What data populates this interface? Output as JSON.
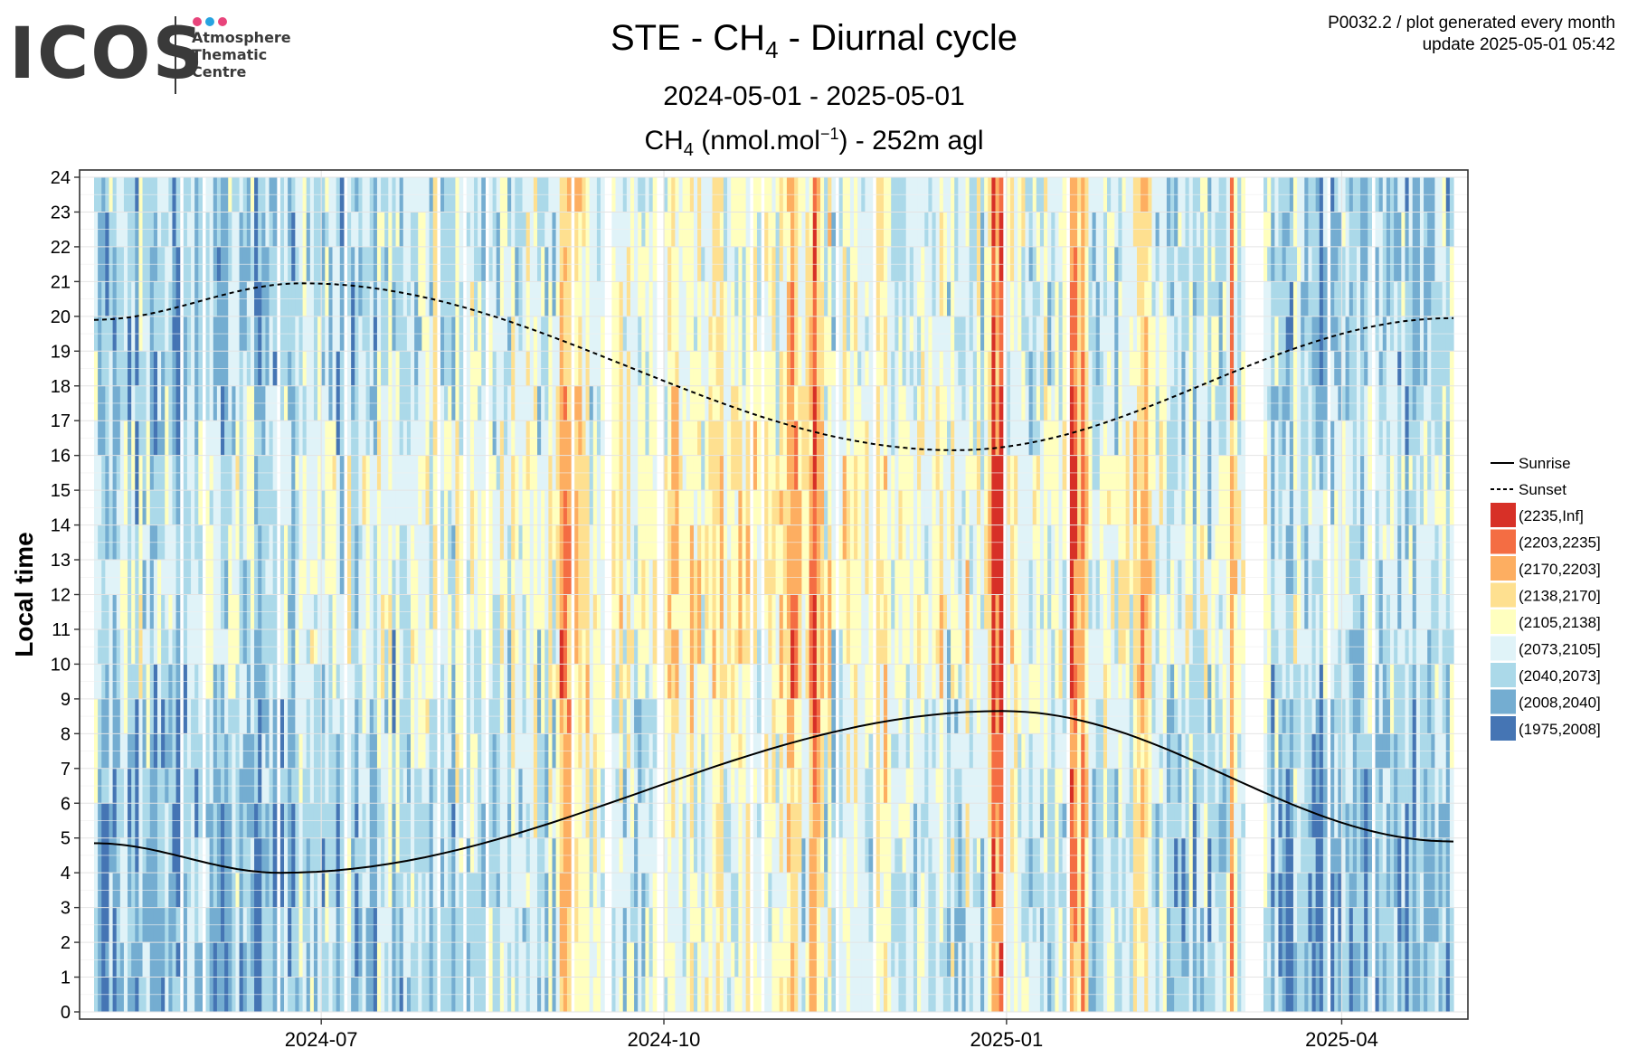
{
  "logo": {
    "text": "ICOS",
    "subtitle_lines": [
      "Atmosphere",
      "Thematic",
      "Centre"
    ],
    "dot_colors": [
      "#e8447b",
      "#27a3e0",
      "#e8447b"
    ]
  },
  "header": {
    "title_prefix": "STE - CH",
    "title_sub": "4",
    "title_suffix": " - Diurnal cycle",
    "period": "2024-05-01 - 2025-05-01",
    "subtitle_prefix": "CH",
    "subtitle_sub": "4",
    "subtitle_unit": " (nmol.mol",
    "subtitle_sup": "−1",
    "subtitle_suffix": ") - 252m agl",
    "info_line1": "P0032.2 / plot generated every month",
    "info_line2": "update  2025-05-01 05:42"
  },
  "chart_data": {
    "type": "heatmap",
    "x_start": "2024-05-01",
    "x_end": "2025-05-01",
    "x_ticks": [
      "2024-07",
      "2024-10",
      "2025-01",
      "2025-04"
    ],
    "x_tick_dates": [
      "2024-07-01",
      "2024-10-01",
      "2025-01-01",
      "2025-04-01"
    ],
    "ylabel": "Local time",
    "y_ticks": [
      0,
      1,
      2,
      3,
      4,
      5,
      6,
      7,
      8,
      9,
      10,
      11,
      12,
      13,
      14,
      15,
      16,
      17,
      18,
      19,
      20,
      21,
      22,
      23,
      24
    ],
    "ylim": [
      0,
      24
    ],
    "grid": true,
    "data_gaps": [
      [
        "2024-09-29",
        "2024-10-01"
      ],
      [
        "2025-03-06",
        "2025-03-11"
      ]
    ],
    "legend": {
      "position": "right",
      "lines": [
        {
          "label": "Sunrise",
          "dash": "solid"
        },
        {
          "label": "Sunset",
          "dash": "dashed"
        }
      ],
      "bins": [
        {
          "label": "(2235,Inf]",
          "color": "#d73027"
        },
        {
          "label": "(2203,2235]",
          "color": "#f46d43"
        },
        {
          "label": "(2170,2203]",
          "color": "#fdae61"
        },
        {
          "label": "(2138,2170]",
          "color": "#fee090"
        },
        {
          "label": "(2105,2138]",
          "color": "#ffffbf"
        },
        {
          "label": "(2073,2105]",
          "color": "#e0f3f8"
        },
        {
          "label": "(2040,2073]",
          "color": "#abd9e9"
        },
        {
          "label": "(2008,2040]",
          "color": "#74add1"
        },
        {
          "label": "(1975,2008]",
          "color": "#4575b4"
        }
      ]
    },
    "sunrise": {
      "dates": [
        "2024-05-01",
        "2024-06-20",
        "2024-12-31",
        "2025-05-01"
      ],
      "hours": [
        4.85,
        4.0,
        8.65,
        4.9
      ]
    },
    "sunset": {
      "dates": [
        "2024-05-01",
        "2024-06-26",
        "2024-12-18",
        "2025-05-01"
      ],
      "hours": [
        19.9,
        20.95,
        16.15,
        19.95
      ]
    },
    "high_episodes": [
      {
        "date": "2024-09-04",
        "intensity": 0.7
      },
      {
        "date": "2024-09-08",
        "intensity": 0.6
      },
      {
        "date": "2024-11-04",
        "intensity": 0.8
      },
      {
        "date": "2024-11-10",
        "intensity": 0.9
      },
      {
        "date": "2024-12-28",
        "intensity": 1.0
      },
      {
        "date": "2024-12-30",
        "intensity": 1.0
      },
      {
        "date": "2025-01-18",
        "intensity": 1.0
      },
      {
        "date": "2025-01-21",
        "intensity": 0.9
      },
      {
        "date": "2025-02-06",
        "intensity": 0.6
      },
      {
        "date": "2025-03-02",
        "intensity": 0.7
      }
    ]
  }
}
